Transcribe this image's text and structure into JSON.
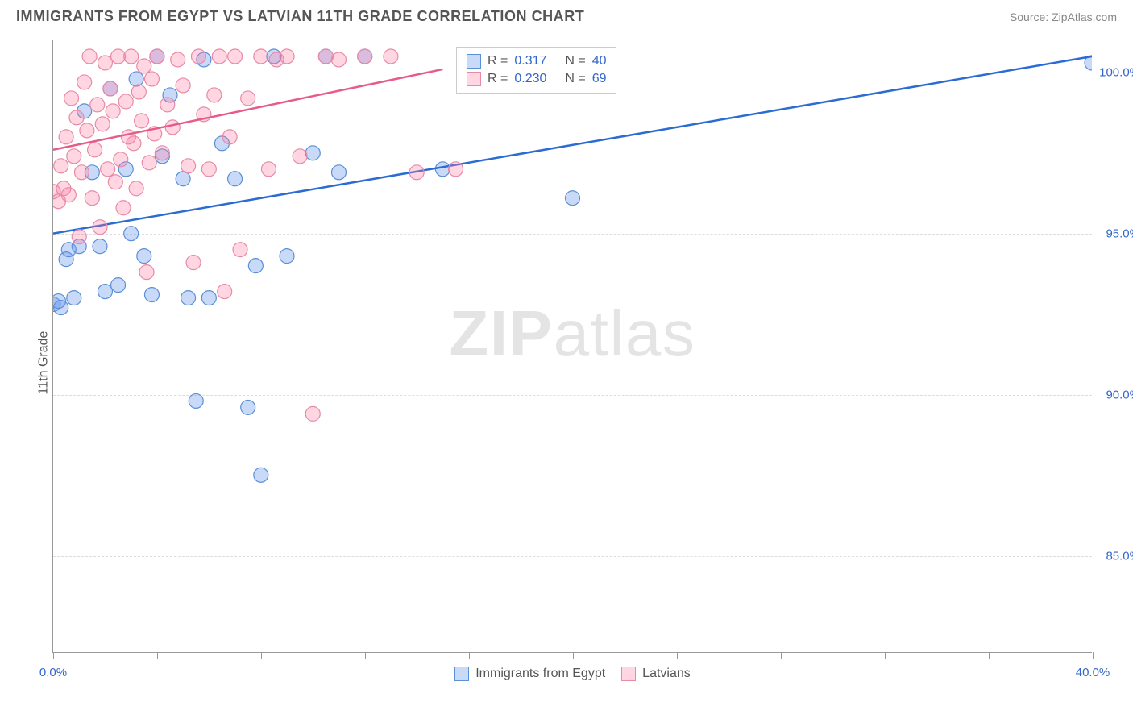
{
  "header": {
    "title": "IMMIGRANTS FROM EGYPT VS LATVIAN 11TH GRADE CORRELATION CHART",
    "source_prefix": "Source: ",
    "source_name": "ZipAtlas.com"
  },
  "watermark": {
    "bold": "ZIP",
    "rest": "atlas"
  },
  "axes": {
    "ylabel": "11th Grade",
    "xlim": [
      0,
      40
    ],
    "ylim": [
      82,
      101
    ],
    "x_tick_positions": [
      0,
      4,
      8,
      12,
      16,
      20,
      24,
      28,
      32,
      36,
      40
    ],
    "x_tick_labels_shown": {
      "0": "0.0%",
      "40": "40.0%"
    },
    "y_grid": [
      {
        "v": 100,
        "label": "100.0%"
      },
      {
        "v": 95,
        "label": "95.0%"
      },
      {
        "v": 90,
        "label": "90.0%"
      },
      {
        "v": 85,
        "label": "85.0%"
      }
    ],
    "grid_color": "#dddddd",
    "axis_color": "#999999",
    "tick_label_color": "#3366cc",
    "axis_label_color": "#555555",
    "label_fontsize": 16,
    "tick_fontsize": 15
  },
  "series": [
    {
      "key": "egypt",
      "label": "Immigrants from Egypt",
      "color_fill": "rgba(100,149,237,0.35)",
      "color_stroke": "#5b8fd6",
      "line_color": "#2b6bd4",
      "marker_radius": 9,
      "R": "0.317",
      "N": "40",
      "trend": {
        "x1": 0,
        "y1": 95.0,
        "x2": 40,
        "y2": 100.5
      },
      "points": [
        [
          0.0,
          92.8
        ],
        [
          0.3,
          92.7
        ],
        [
          0.5,
          94.2
        ],
        [
          0.6,
          94.5
        ],
        [
          0.8,
          93.0
        ],
        [
          1.0,
          94.6
        ],
        [
          1.2,
          98.8
        ],
        [
          1.5,
          96.9
        ],
        [
          1.8,
          94.6
        ],
        [
          2.0,
          93.2
        ],
        [
          2.2,
          99.5
        ],
        [
          2.5,
          93.4
        ],
        [
          2.8,
          97.0
        ],
        [
          3.0,
          95.0
        ],
        [
          3.2,
          99.8
        ],
        [
          3.5,
          94.3
        ],
        [
          3.8,
          93.1
        ],
        [
          4.0,
          100.5
        ],
        [
          4.2,
          97.4
        ],
        [
          4.5,
          99.3
        ],
        [
          5.0,
          96.7
        ],
        [
          5.2,
          93.0
        ],
        [
          5.5,
          89.8
        ],
        [
          5.8,
          100.4
        ],
        [
          6.0,
          93.0
        ],
        [
          6.5,
          97.8
        ],
        [
          7.0,
          96.7
        ],
        [
          7.5,
          89.6
        ],
        [
          7.8,
          94.0
        ],
        [
          8.0,
          87.5
        ],
        [
          8.5,
          100.5
        ],
        [
          9.0,
          94.3
        ],
        [
          10.0,
          97.5
        ],
        [
          10.5,
          100.5
        ],
        [
          11.0,
          96.9
        ],
        [
          12.0,
          100.5
        ],
        [
          15.0,
          97.0
        ],
        [
          20.0,
          96.1
        ],
        [
          40.0,
          100.3
        ],
        [
          0.2,
          92.9
        ]
      ]
    },
    {
      "key": "latvian",
      "label": "Latvians",
      "color_fill": "rgba(255,120,160,0.30)",
      "color_stroke": "#e88aa6",
      "line_color": "#e85a8a",
      "marker_radius": 9,
      "R": "0.230",
      "N": "69",
      "trend": {
        "x1": 0,
        "y1": 97.6,
        "x2": 15,
        "y2": 100.1
      },
      "points": [
        [
          0.0,
          96.3
        ],
        [
          0.2,
          96.0
        ],
        [
          0.3,
          97.1
        ],
        [
          0.4,
          96.4
        ],
        [
          0.5,
          98.0
        ],
        [
          0.6,
          96.2
        ],
        [
          0.7,
          99.2
        ],
        [
          0.8,
          97.4
        ],
        [
          0.9,
          98.6
        ],
        [
          1.0,
          94.9
        ],
        [
          1.1,
          96.9
        ],
        [
          1.2,
          99.7
        ],
        [
          1.3,
          98.2
        ],
        [
          1.4,
          100.5
        ],
        [
          1.5,
          96.1
        ],
        [
          1.6,
          97.6
        ],
        [
          1.7,
          99.0
        ],
        [
          1.8,
          95.2
        ],
        [
          1.9,
          98.4
        ],
        [
          2.0,
          100.3
        ],
        [
          2.1,
          97.0
        ],
        [
          2.2,
          99.5
        ],
        [
          2.3,
          98.8
        ],
        [
          2.4,
          96.6
        ],
        [
          2.5,
          100.5
        ],
        [
          2.6,
          97.3
        ],
        [
          2.7,
          95.8
        ],
        [
          2.8,
          99.1
        ],
        [
          2.9,
          98.0
        ],
        [
          3.0,
          100.5
        ],
        [
          3.1,
          97.8
        ],
        [
          3.2,
          96.4
        ],
        [
          3.3,
          99.4
        ],
        [
          3.4,
          98.5
        ],
        [
          3.5,
          100.2
        ],
        [
          3.6,
          93.8
        ],
        [
          3.7,
          97.2
        ],
        [
          3.8,
          99.8
        ],
        [
          3.9,
          98.1
        ],
        [
          4.0,
          100.5
        ],
        [
          4.2,
          97.5
        ],
        [
          4.4,
          99.0
        ],
        [
          4.6,
          98.3
        ],
        [
          4.8,
          100.4
        ],
        [
          5.0,
          99.6
        ],
        [
          5.2,
          97.1
        ],
        [
          5.4,
          94.1
        ],
        [
          5.6,
          100.5
        ],
        [
          5.8,
          98.7
        ],
        [
          6.0,
          97.0
        ],
        [
          6.2,
          99.3
        ],
        [
          6.4,
          100.5
        ],
        [
          6.6,
          93.2
        ],
        [
          6.8,
          98.0
        ],
        [
          7.0,
          100.5
        ],
        [
          7.2,
          94.5
        ],
        [
          7.5,
          99.2
        ],
        [
          8.0,
          100.5
        ],
        [
          8.3,
          97.0
        ],
        [
          8.6,
          100.4
        ],
        [
          9.0,
          100.5
        ],
        [
          9.5,
          97.4
        ],
        [
          10.0,
          89.4
        ],
        [
          10.5,
          100.5
        ],
        [
          11.0,
          100.4
        ],
        [
          12.0,
          100.5
        ],
        [
          13.0,
          100.5
        ],
        [
          14.0,
          96.9
        ],
        [
          15.5,
          97.0
        ]
      ]
    }
  ],
  "stats_legend": {
    "position_hint": "top-center",
    "rows": [
      {
        "series": "egypt",
        "R_label": "R =",
        "N_label": "N ="
      },
      {
        "series": "latvian",
        "R_label": "R =",
        "N_label": "N ="
      }
    ]
  },
  "background_color": "#ffffff"
}
